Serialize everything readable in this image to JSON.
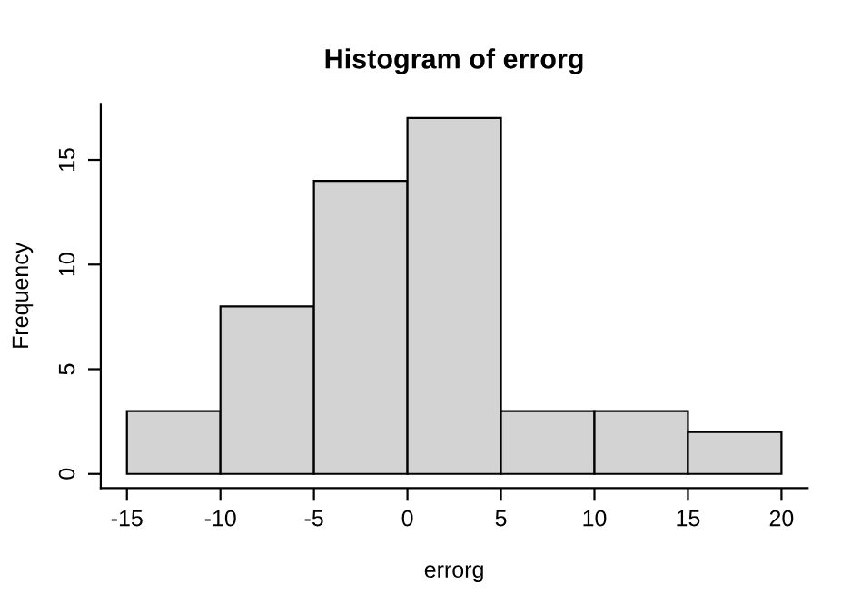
{
  "chart_data": {
    "type": "histogram",
    "title": "Histogram of errorg",
    "xlabel": "errorg",
    "ylabel": "Frequency",
    "bins": [
      -15,
      -10,
      -5,
      0,
      5,
      10,
      15,
      20
    ],
    "values": [
      3,
      8,
      14,
      17,
      3,
      3,
      2
    ],
    "color": "#d3d3d3",
    "xlim": [
      -16.4,
      21.4
    ],
    "ylim": [
      -0.68,
      17.68
    ],
    "xticks": [
      -15,
      -10,
      -5,
      0,
      5,
      10,
      15,
      20
    ],
    "yticks": [
      0,
      5,
      10,
      15
    ],
    "grid": false
  }
}
